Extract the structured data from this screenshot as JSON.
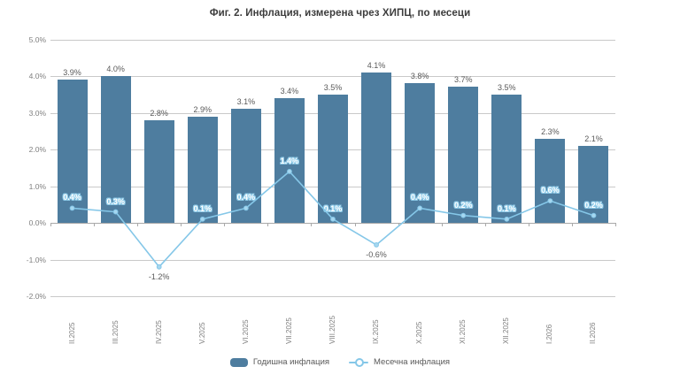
{
  "title": "Фиг. 2. Инфлация, измерена чрез ХИПЦ, по месеци",
  "legend": {
    "annual": "Годишна инфлация",
    "monthly": "Месечна инфлация"
  },
  "colors": {
    "bar": "#4e7d9f",
    "line": "#85c7e8",
    "marker_fill": "#a6d7f0",
    "gridline": "#c9c9c9",
    "axis": "#a9a9a9",
    "label_dark": "#595959",
    "axis_text": "#7f7f7f"
  },
  "chart_data": {
    "type": "bar",
    "title": "Фиг. 2. Инфлация, измерена чрез ХИПЦ, по месеци",
    "categories": [
      "II.2025",
      "III.2025",
      "IV.2025",
      "V.2025",
      "VI.2025",
      "VII.2025",
      "VIII.2025",
      "IX.2025",
      "X.2025",
      "XI.2025",
      "XII.2025",
      "I.2026",
      "II.2026"
    ],
    "series": [
      {
        "name": "Годишна инфлация",
        "type": "bar",
        "color": "#4e7d9f",
        "values": [
          3.9,
          4.0,
          2.8,
          2.9,
          3.1,
          3.4,
          3.5,
          4.1,
          3.8,
          3.7,
          3.5,
          2.3,
          2.1
        ]
      },
      {
        "name": "Месечна инфлация",
        "type": "line",
        "color": "#85c7e8",
        "values": [
          0.4,
          0.3,
          -1.2,
          0.1,
          0.4,
          1.4,
          0.1,
          -0.6,
          0.4,
          0.2,
          0.1,
          0.6,
          0.2
        ]
      }
    ],
    "xlabel": "",
    "ylabel": "",
    "ylim": [
      -2,
      5
    ],
    "yticks": [
      5,
      4,
      3,
      2,
      1,
      0,
      -1,
      -2
    ],
    "ytick_format": "percent_1dp",
    "grid": true,
    "legend_position": "bottom",
    "value_labels": "percent_1dp"
  }
}
